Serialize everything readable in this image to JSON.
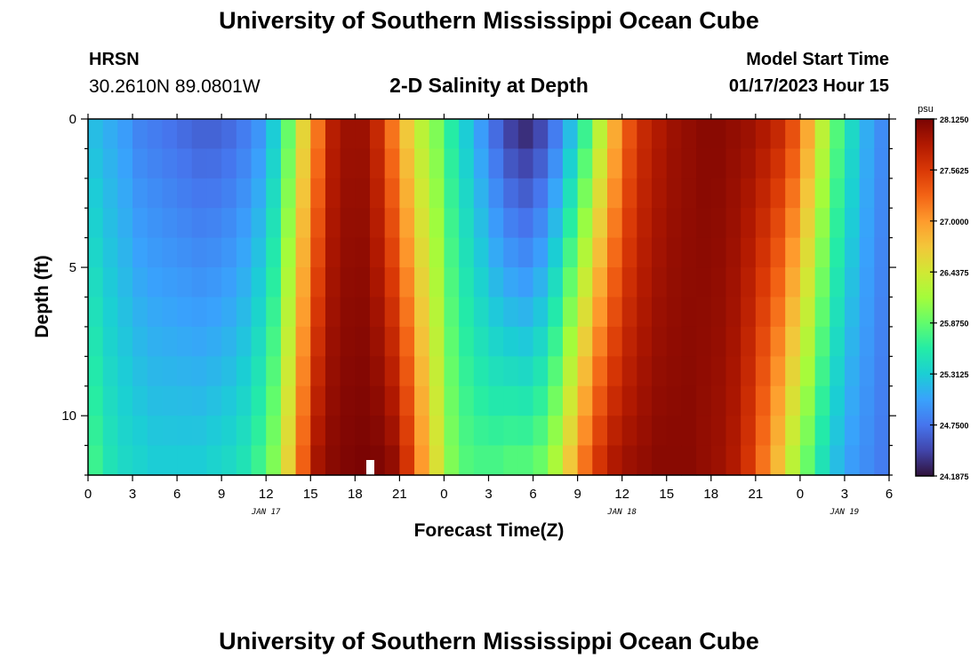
{
  "header": {
    "title": "University of Southern Mississippi Ocean Cube",
    "station_code": "HRSN",
    "station_coords": "30.2610N  89.0801W",
    "chart_title": "2-D Salinity at Depth",
    "model_start_label": "Model Start Time",
    "model_start_value": "01/17/2023 Hour 15"
  },
  "footer": {
    "title": "University of Southern Mississippi Ocean Cube"
  },
  "chart_data": {
    "type": "heatmap",
    "title": "2-D Salinity at Depth",
    "xlabel": "Forecast Time(Z)",
    "ylabel": "Depth (ft)",
    "x_tick_labels": [
      "0",
      "3",
      "6",
      "9",
      "12",
      "15",
      "18",
      "21",
      "0",
      "3",
      "6",
      "9",
      "12",
      "15",
      "18",
      "21",
      "0",
      "3",
      "6"
    ],
    "x_range_hours": [
      0,
      54
    ],
    "day_labels": [
      {
        "text": "JAN 17",
        "hour": 12
      },
      {
        "text": "JAN 18",
        "hour": 36
      },
      {
        "text": "JAN 19",
        "hour": 51
      }
    ],
    "y_tick_labels": [
      "0",
      "5",
      "10"
    ],
    "y_tick_values": [
      0,
      5,
      10
    ],
    "ylim": [
      0,
      12
    ],
    "y_inverted": true,
    "colorbar": {
      "unit": "psu",
      "min": 24.1875,
      "max": 28.125,
      "tick_labels": [
        "28.1250",
        "27.5625",
        "27.0000",
        "26.4375",
        "25.8750",
        "25.3125",
        "24.7500",
        "24.1875"
      ],
      "tick_values": [
        28.125,
        27.5625,
        27.0,
        26.4375,
        25.875,
        25.3125,
        24.75,
        24.1875
      ],
      "colors": [
        "#30123b",
        "#4145ab",
        "#4675ed",
        "#39a2fc",
        "#1bcfd4",
        "#24eca6",
        "#61fc6c",
        "#a4fc3b",
        "#d1e834",
        "#f3c63a",
        "#fe9b2d",
        "#f36315",
        "#d93806",
        "#b11901",
        "#7a0403"
      ]
    },
    "time_step_hours": 1,
    "depth_levels_ft": [
      0.5,
      1.5,
      2.5,
      3.5,
      4.5,
      5.5,
      6.5,
      7.5,
      8.5,
      9.5,
      10.5,
      11.5
    ],
    "surface_profile_psu": [
      25.2,
      25.1,
      25.0,
      24.85,
      24.8,
      24.75,
      24.7,
      24.65,
      24.65,
      24.7,
      24.8,
      24.95,
      25.3,
      25.9,
      26.6,
      27.2,
      27.8,
      27.95,
      27.95,
      27.7,
      27.2,
      26.7,
      26.3,
      26.0,
      25.6,
      25.3,
      25.0,
      24.7,
      24.45,
      24.35,
      24.5,
      24.8,
      25.2,
      25.7,
      26.3,
      26.9,
      27.4,
      27.7,
      27.85,
      27.95,
      28.0,
      28.05,
      28.05,
      28.0,
      27.95,
      27.85,
      27.7,
      27.4,
      26.9,
      26.3,
      25.8,
      25.4,
      25.1,
      24.9
    ],
    "bottom_profile_psu": [
      25.7,
      25.5,
      25.4,
      25.35,
      25.3,
      25.3,
      25.3,
      25.3,
      25.35,
      25.4,
      25.5,
      25.7,
      26.0,
      26.6,
      27.3,
      27.9,
      28.05,
      28.1,
      28.12,
      28.1,
      28.0,
      27.6,
      27.0,
      26.5,
      26.0,
      25.8,
      25.75,
      25.75,
      25.8,
      25.8,
      25.9,
      26.2,
      26.7,
      27.2,
      27.6,
      27.85,
      27.95,
      28.0,
      28.05,
      28.05,
      28.05,
      28.0,
      27.95,
      27.85,
      27.6,
      27.2,
      26.8,
      26.3,
      25.9,
      25.5,
      25.2,
      25.0,
      24.9,
      24.8
    ],
    "grid": false
  }
}
